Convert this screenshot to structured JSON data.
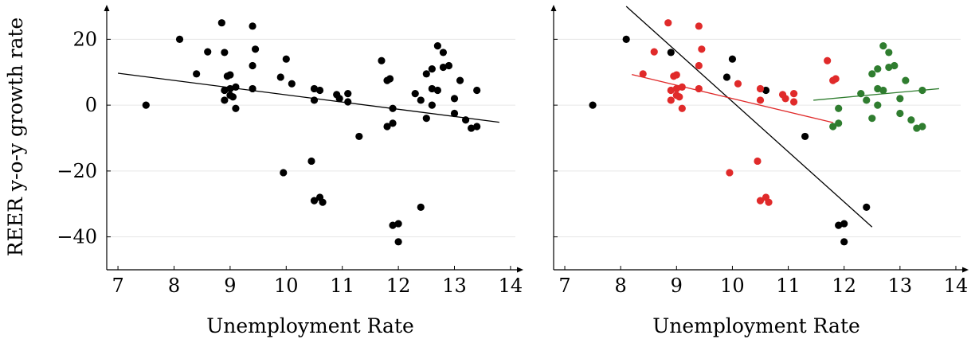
{
  "chart_data": [
    {
      "type": "scatter",
      "title": "",
      "xlabel": "Unemployment Rate",
      "ylabel": "REER y-o-y growth rate",
      "xlim": [
        6.8,
        14.2
      ],
      "ylim": [
        -50,
        30
      ],
      "xticks": [
        7,
        8,
        9,
        10,
        11,
        12,
        13,
        14
      ],
      "xtick_labels": [
        "7",
        "8",
        "9",
        "10",
        "11",
        "12",
        "13",
        "14"
      ],
      "yticks": [
        -40,
        -20,
        0,
        20
      ],
      "ytick_labels": [
        "−40",
        "−20",
        "0",
        "20"
      ],
      "grid": "horizontal",
      "colors": {
        "points": "#000000",
        "line": "#000000",
        "grid": "#e6e6e6"
      },
      "series": [
        {
          "color": "#000000",
          "points": [
            [
              7.5,
              0
            ],
            [
              8.1,
              20
            ],
            [
              8.4,
              9.5
            ],
            [
              8.6,
              16.2
            ],
            [
              8.85,
              25
            ],
            [
              8.9,
              16
            ],
            [
              8.9,
              1.5
            ],
            [
              8.9,
              4.5
            ],
            [
              8.95,
              8.8
            ],
            [
              9.0,
              9.2
            ],
            [
              9.0,
              3
            ],
            [
              9.0,
              5
            ],
            [
              9.05,
              2.5
            ],
            [
              9.1,
              -1
            ],
            [
              9.1,
              5.5
            ],
            [
              9.4,
              24
            ],
            [
              9.45,
              17
            ],
            [
              9.4,
              12
            ],
            [
              9.4,
              5
            ],
            [
              9.9,
              8.5
            ],
            [
              9.95,
              -20.5
            ],
            [
              10.0,
              14
            ],
            [
              10.1,
              6.5
            ],
            [
              10.45,
              -17
            ],
            [
              10.5,
              1.5
            ],
            [
              10.5,
              5
            ],
            [
              10.6,
              4.5
            ],
            [
              10.5,
              -29
            ],
            [
              10.6,
              -28
            ],
            [
              10.65,
              -29.5
            ],
            [
              10.9,
              3.2
            ],
            [
              10.95,
              2
            ],
            [
              11.1,
              3.5
            ],
            [
              11.1,
              1
            ],
            [
              11.3,
              -9.5
            ],
            [
              11.7,
              13.5
            ],
            [
              11.8,
              7.5
            ],
            [
              11.8,
              -6.5
            ],
            [
              11.85,
              8
            ],
            [
              11.9,
              -1
            ],
            [
              11.9,
              -5.5
            ],
            [
              11.9,
              -36.5
            ],
            [
              12.0,
              -36
            ],
            [
              12.0,
              -41.5
            ],
            [
              12.3,
              3.5
            ],
            [
              12.4,
              1.5
            ],
            [
              12.4,
              -31
            ],
            [
              12.5,
              -4
            ],
            [
              12.5,
              9.5
            ],
            [
              12.6,
              11
            ],
            [
              12.6,
              5
            ],
            [
              12.6,
              0
            ],
            [
              12.7,
              18
            ],
            [
              12.7,
              4.5
            ],
            [
              12.8,
              16
            ],
            [
              12.8,
              11.5
            ],
            [
              12.9,
              12
            ],
            [
              13.0,
              2
            ],
            [
              13.0,
              -2.5
            ],
            [
              13.1,
              7.5
            ],
            [
              13.2,
              -4.5
            ],
            [
              13.3,
              -7
            ],
            [
              13.4,
              4.5
            ],
            [
              13.4,
              -6.5
            ]
          ]
        }
      ],
      "fit_lines": [
        {
          "color": "#000000",
          "x": [
            7.0,
            13.8
          ],
          "y": [
            9.7,
            -5.2
          ]
        }
      ]
    },
    {
      "type": "scatter",
      "title": "",
      "xlabel": "Unemployment Rate",
      "ylabel": "",
      "xlim": [
        6.8,
        14.2
      ],
      "ylim": [
        -50,
        30
      ],
      "xticks": [
        7,
        8,
        9,
        10,
        11,
        12,
        13,
        14
      ],
      "xtick_labels": [
        "7",
        "8",
        "9",
        "10",
        "11",
        "12",
        "13",
        "14"
      ],
      "yticks": [
        -40,
        -20,
        0,
        20
      ],
      "ytick_labels": [
        "",
        "",
        "",
        ""
      ],
      "grid": "horizontal",
      "colors": {
        "black": "#000000",
        "red": "#e02a2a",
        "green": "#2f7d2f",
        "grid": "#e6e6e6"
      },
      "series": [
        {
          "color": "#000000",
          "points": [
            [
              7.5,
              0
            ],
            [
              8.1,
              20
            ],
            [
              8.9,
              16
            ],
            [
              9.9,
              8.5
            ],
            [
              10.0,
              14
            ],
            [
              10.6,
              4.5
            ],
            [
              11.3,
              -9.5
            ],
            [
              11.9,
              -36.5
            ],
            [
              12.0,
              -36
            ],
            [
              12.0,
              -41.5
            ],
            [
              12.4,
              -31
            ]
          ]
        },
        {
          "color": "#e02a2a",
          "points": [
            [
              8.4,
              9.5
            ],
            [
              8.6,
              16.2
            ],
            [
              8.85,
              25
            ],
            [
              8.9,
              1.5
            ],
            [
              8.9,
              4.5
            ],
            [
              8.95,
              8.8
            ],
            [
              9.0,
              9.2
            ],
            [
              9.0,
              3
            ],
            [
              9.0,
              5
            ],
            [
              9.05,
              2.5
            ],
            [
              9.1,
              -1
            ],
            [
              9.1,
              5.5
            ],
            [
              9.4,
              24
            ],
            [
              9.45,
              17
            ],
            [
              9.4,
              12
            ],
            [
              9.4,
              5
            ],
            [
              9.95,
              -20.5
            ],
            [
              10.1,
              6.5
            ],
            [
              10.45,
              -17
            ],
            [
              10.5,
              1.5
            ],
            [
              10.5,
              5
            ],
            [
              10.5,
              -29
            ],
            [
              10.6,
              -28
            ],
            [
              10.65,
              -29.5
            ],
            [
              10.9,
              3.2
            ],
            [
              10.95,
              2
            ],
            [
              11.1,
              3.5
            ],
            [
              11.1,
              1
            ],
            [
              11.7,
              13.5
            ],
            [
              11.8,
              7.5
            ],
            [
              11.85,
              8
            ]
          ]
        },
        {
          "color": "#2f7d2f",
          "points": [
            [
              11.8,
              -6.5
            ],
            [
              11.9,
              -1
            ],
            [
              11.9,
              -5.5
            ],
            [
              12.3,
              3.5
            ],
            [
              12.4,
              1.5
            ],
            [
              12.5,
              -4
            ],
            [
              12.5,
              9.5
            ],
            [
              12.6,
              11
            ],
            [
              12.6,
              5
            ],
            [
              12.6,
              0
            ],
            [
              12.7,
              18
            ],
            [
              12.7,
              4.5
            ],
            [
              12.8,
              16
            ],
            [
              12.8,
              11.5
            ],
            [
              12.9,
              12
            ],
            [
              13.0,
              2
            ],
            [
              13.0,
              -2.5
            ],
            [
              13.1,
              7.5
            ],
            [
              13.2,
              -4.5
            ],
            [
              13.3,
              -7
            ],
            [
              13.4,
              4.5
            ],
            [
              13.4,
              -6.5
            ]
          ]
        }
      ],
      "fit_lines": [
        {
          "color": "#000000",
          "x": [
            8.1,
            12.5
          ],
          "y": [
            30,
            -37
          ]
        },
        {
          "color": "#e02a2a",
          "x": [
            8.2,
            11.8
          ],
          "y": [
            9.3,
            -5.3
          ]
        },
        {
          "color": "#2f7d2f",
          "x": [
            11.45,
            13.7
          ],
          "y": [
            1.5,
            5.0
          ]
        }
      ]
    }
  ]
}
